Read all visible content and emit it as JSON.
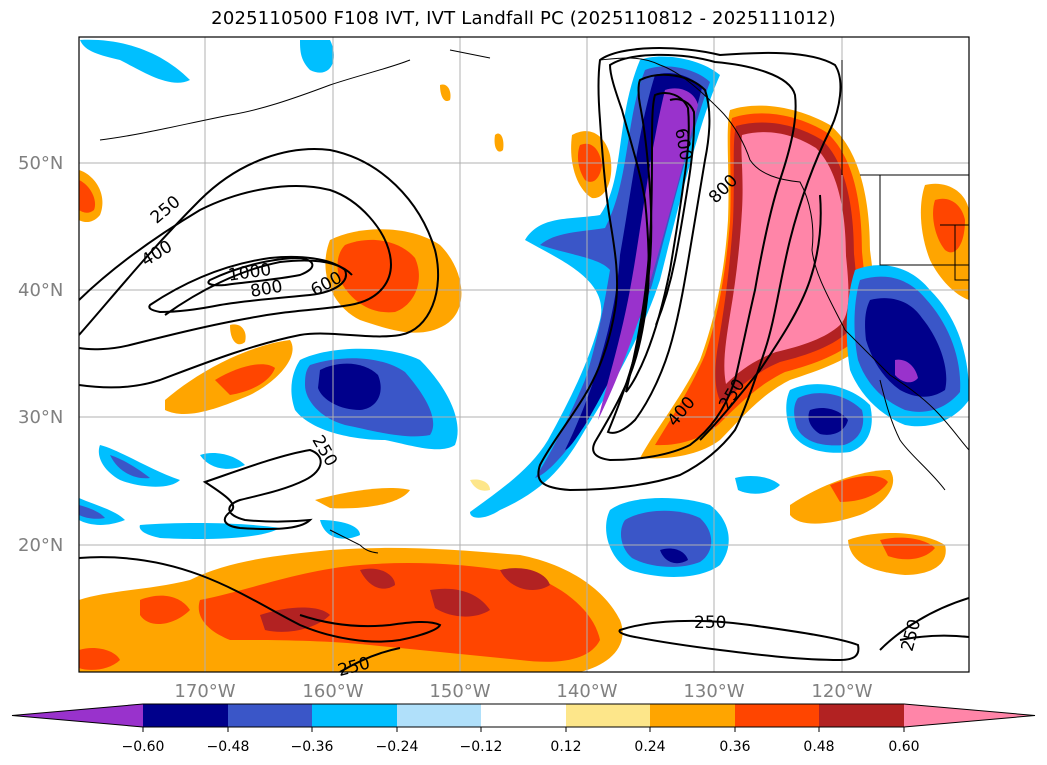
{
  "title": "2025110500 F108 IVT, IVT Landfall PC (2025110812 - 2025111012)",
  "map": {
    "lat_labels": [
      "50°N",
      "40°N",
      "30°N",
      "20°N"
    ],
    "lon_labels": [
      "170°W",
      "160°W",
      "150°W",
      "140°W",
      "130°W",
      "120°W"
    ],
    "contour_labels": [
      "250",
      "400",
      "1000",
      "800",
      "600",
      "250",
      "600",
      "800",
      "400",
      "250",
      "250",
      "250",
      "250"
    ]
  },
  "colorbar": {
    "ticks": [
      "−0.60",
      "−0.48",
      "−0.36",
      "−0.24",
      "−0.12",
      "0.12",
      "0.24",
      "0.36",
      "0.48",
      "0.60"
    ],
    "colors": [
      "#9932cc",
      "#00008b",
      "#3a56c8",
      "#00bfff",
      "#b0e0fa",
      "#ffffff",
      "#fde68a",
      "#ffa500",
      "#ff4500",
      "#b22222",
      "#ff85a8"
    ]
  }
}
